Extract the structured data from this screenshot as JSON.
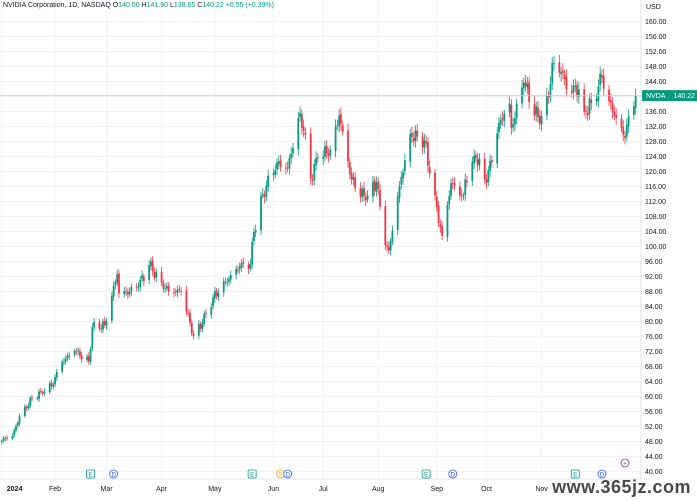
{
  "legend": {
    "symbol": "NVIDIA Corporation, 1D, NASDAQ",
    "o_label": "O",
    "o_value": "140.00",
    "h_label": "H",
    "h_value": "141.90",
    "l_label": "L",
    "l_value": "138.65",
    "c_label": "C",
    "c_value": "140.22",
    "change": "+0.55 (+0.39%)"
  },
  "colors": {
    "up": "#089981",
    "down": "#f23645",
    "grid": "#f0f3fa",
    "axis_text": "#131722",
    "price_tag": "#089981",
    "earnings": "#089981",
    "dividend": "#2962ff",
    "split": "#f7a21b",
    "event_extra": "#9c27b0"
  },
  "chart_data": {
    "type": "candlestick",
    "ticker": "NVDA",
    "last_price": 140.22,
    "y_unit": "USD",
    "ylim": [
      38,
      162
    ],
    "y_ticks": [
      40.0,
      44.0,
      48.0,
      52.0,
      56.0,
      60.0,
      64.0,
      68.0,
      72.0,
      76.0,
      80.0,
      84.0,
      88.0,
      92.0,
      96.0,
      100.0,
      104.0,
      108.0,
      112.0,
      116.0,
      120.0,
      124.0,
      128.0,
      132.0,
      136.0,
      140.0,
      144.0,
      148.0,
      152.0,
      156.0,
      160.0
    ],
    "x_ticks": [
      {
        "label": "2024",
        "date": "2024-01-02",
        "bold": true
      },
      {
        "label": "Feb",
        "date": "2024-02-01"
      },
      {
        "label": "Mar",
        "date": "2024-03-01"
      },
      {
        "label": "Apr",
        "date": "2024-04-01"
      },
      {
        "label": "May",
        "date": "2024-05-01"
      },
      {
        "label": "Jun",
        "date": "2024-06-03"
      },
      {
        "label": "Jul",
        "date": "2024-07-01"
      },
      {
        "label": "Aug",
        "date": "2024-08-01"
      },
      {
        "label": "Sep",
        "date": "2024-09-03"
      },
      {
        "label": "Oct",
        "date": "2024-10-01"
      },
      {
        "label": "Nov",
        "date": "2024-11-01"
      }
    ],
    "grid": true,
    "events": [
      {
        "type": "earnings",
        "label": "E",
        "date": "2024-02-21"
      },
      {
        "type": "dividend",
        "label": "D",
        "date": "2024-03-05"
      },
      {
        "type": "earnings",
        "label": "E",
        "date": "2024-05-22"
      },
      {
        "type": "split",
        "label": "S",
        "date": "2024-06-07"
      },
      {
        "type": "dividend",
        "label": "D",
        "date": "2024-06-11"
      },
      {
        "type": "earnings",
        "label": "E",
        "date": "2024-08-28"
      },
      {
        "type": "dividend",
        "label": "D",
        "date": "2024-09-12"
      },
      {
        "type": "earnings",
        "label": "E",
        "date": "2024-11-20"
      },
      {
        "type": "dividend",
        "label": "D",
        "date": "2024-12-05"
      },
      {
        "type": "other",
        "label": "+",
        "date": "2024-12-18"
      }
    ],
    "anchors": [
      [
        "2024-01-02",
        48.2
      ],
      [
        "2024-01-04",
        48.9
      ],
      [
        "2024-01-08",
        49.5
      ],
      [
        "2024-01-12",
        54.7
      ],
      [
        "2024-01-19",
        59.4
      ],
      [
        "2024-01-24",
        61.3
      ],
      [
        "2024-01-30",
        62.8
      ],
      [
        "2024-02-05",
        69.2
      ],
      [
        "2024-02-12",
        72.2
      ],
      [
        "2024-02-20",
        69.4
      ],
      [
        "2024-02-22",
        78.5
      ],
      [
        "2024-02-29",
        79.1
      ],
      [
        "2024-03-07",
        92.6
      ],
      [
        "2024-03-08",
        87.5
      ],
      [
        "2024-03-14",
        87.9
      ],
      [
        "2024-03-19",
        89.4
      ],
      [
        "2024-03-25",
        95.0
      ],
      [
        "2024-04-01",
        90.4
      ],
      [
        "2024-04-05",
        88.0
      ],
      [
        "2024-04-12",
        88.1
      ],
      [
        "2024-04-19",
        76.2
      ],
      [
        "2024-04-24",
        79.6
      ],
      [
        "2024-04-30",
        86.4
      ],
      [
        "2024-05-07",
        90.5
      ],
      [
        "2024-05-15",
        94.6
      ],
      [
        "2024-05-21",
        95.4
      ],
      [
        "2024-05-23",
        103.8
      ],
      [
        "2024-05-28",
        114.0
      ],
      [
        "2024-06-05",
        122.4
      ],
      [
        "2024-06-11",
        120.9
      ],
      [
        "2024-06-18",
        135.6
      ],
      [
        "2024-06-20",
        130.8
      ],
      [
        "2024-06-24",
        118.1
      ],
      [
        "2024-06-28",
        123.5
      ],
      [
        "2024-07-05",
        125.8
      ],
      [
        "2024-07-10",
        134.9
      ],
      [
        "2024-07-17",
        117.9
      ],
      [
        "2024-07-25",
        112.3
      ],
      [
        "2024-07-31",
        117.0
      ],
      [
        "2024-08-05",
        100.4
      ],
      [
        "2024-08-07",
        98.9
      ],
      [
        "2024-08-13",
        116.1
      ],
      [
        "2024-08-19",
        130.0
      ],
      [
        "2024-08-23",
        129.3
      ],
      [
        "2024-08-27",
        128.3
      ],
      [
        "2024-08-30",
        119.4
      ],
      [
        "2024-09-06",
        102.8
      ],
      [
        "2024-09-11",
        116.9
      ],
      [
        "2024-09-18",
        113.4
      ],
      [
        "2024-09-19",
        117.9
      ],
      [
        "2024-09-25",
        123.5
      ],
      [
        "2024-10-01",
        117.0
      ],
      [
        "2024-10-08",
        132.9
      ],
      [
        "2024-10-14",
        138.1
      ],
      [
        "2024-10-15",
        131.6
      ],
      [
        "2024-10-22",
        143.6
      ],
      [
        "2024-10-31",
        132.8
      ],
      [
        "2024-11-05",
        139.9
      ],
      [
        "2024-11-07",
        148.9
      ],
      [
        "2024-11-13",
        146.3
      ],
      [
        "2024-11-15",
        141.9
      ],
      [
        "2024-11-22",
        141.9
      ],
      [
        "2024-11-25",
        136.0
      ],
      [
        "2024-11-29",
        138.3
      ],
      [
        "2024-12-05",
        145.1
      ],
      [
        "2024-12-09",
        138.8
      ],
      [
        "2024-12-13",
        134.3
      ],
      [
        "2024-12-18",
        128.9
      ],
      [
        "2024-12-20",
        134.7
      ],
      [
        "2024-12-24",
        140.2
      ]
    ]
  },
  "watermark": "www.365jz.com"
}
